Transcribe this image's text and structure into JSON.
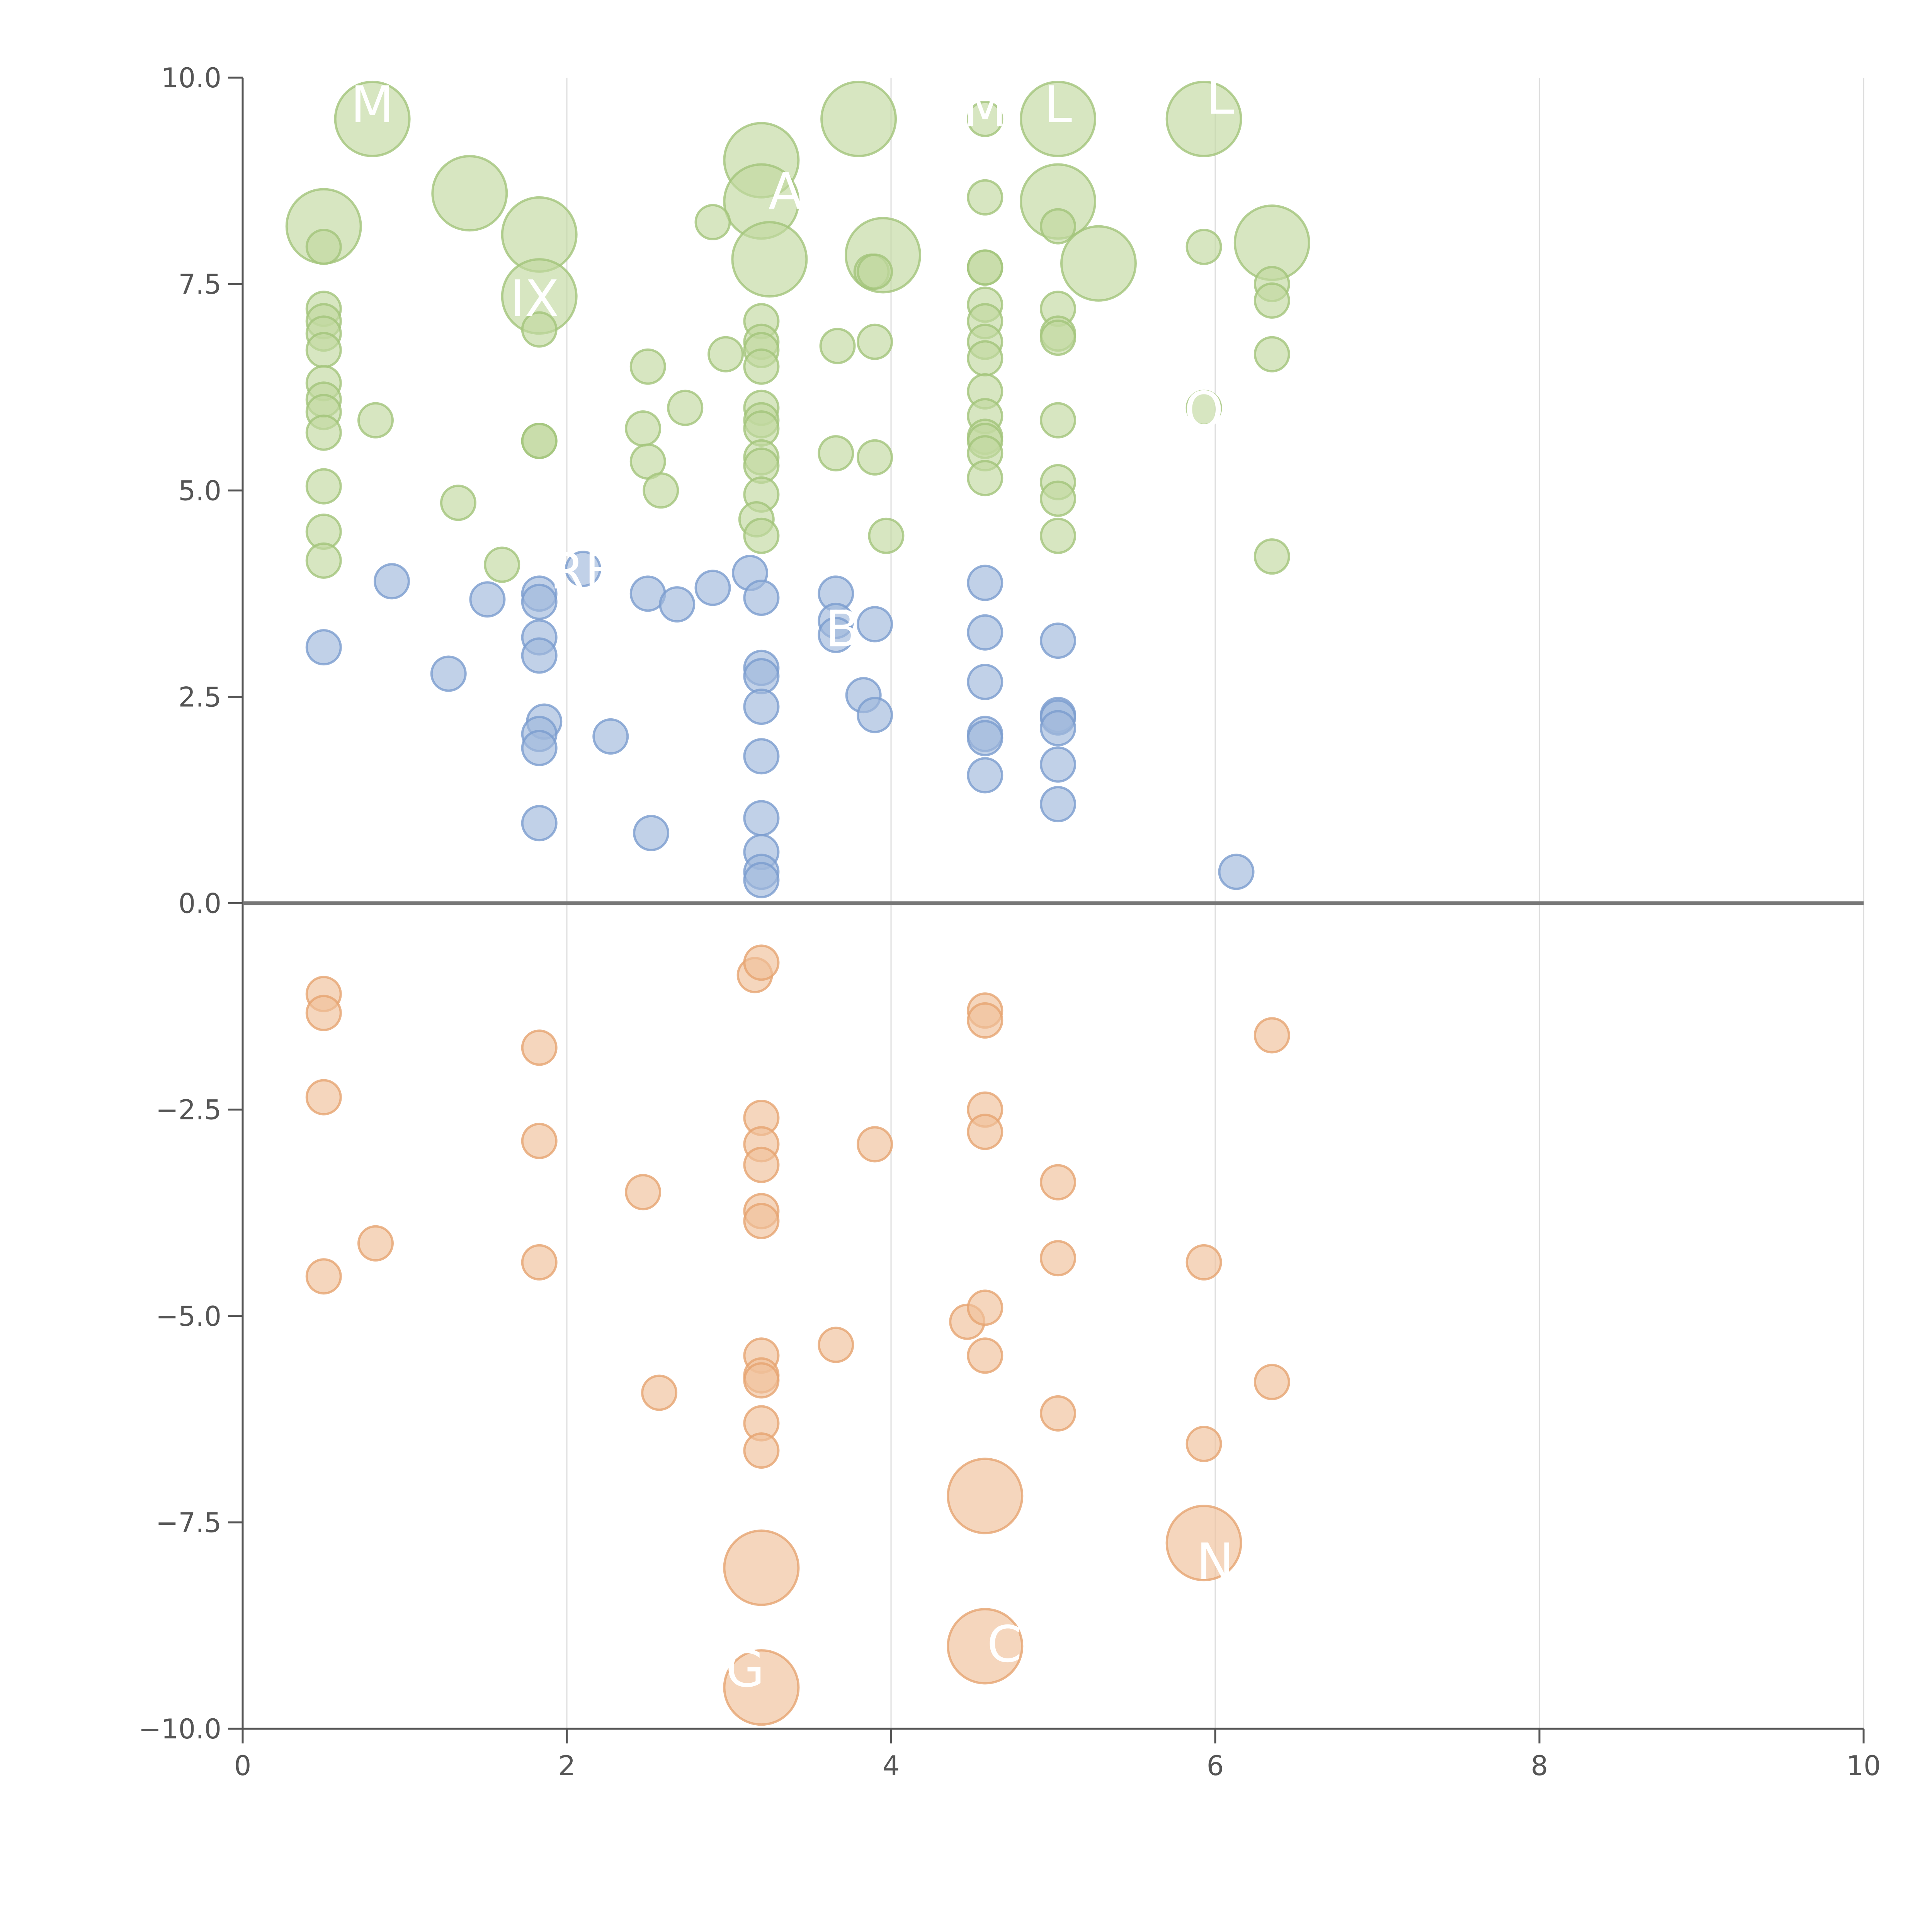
{
  "chart_data": {
    "type": "scatter",
    "title": "",
    "xlabel": "",
    "ylabel": "",
    "xlim": [
      0,
      10
    ],
    "ylim": [
      -10,
      10
    ],
    "xticks": [
      "0",
      "2",
      "4",
      "6",
      "8",
      "10"
    ],
    "yticks": [
      "−10.0",
      "−7.5",
      "−5.0",
      "−2.5",
      "0.0",
      "2.5",
      "5.0",
      "7.5",
      "10.0"
    ],
    "grid": "vertical",
    "zero_line": true,
    "colors": {
      "green_fill": "#c2d9a0",
      "green_stroke": "#a3c47a",
      "blue_fill": "#9fb8dc",
      "blue_stroke": "#7a9cce",
      "orange_fill": "#f0c09a",
      "orange_stroke": "#e6a470",
      "label_color": "#ffffff"
    },
    "groups": [
      {
        "color_key": "green",
        "points": [
          [
            0.5,
            8.2,
            3
          ],
          [
            0.8,
            9.5,
            3
          ],
          [
            1.4,
            8.6,
            3
          ],
          [
            1.83,
            8.1,
            3
          ],
          [
            1.83,
            7.35,
            3
          ],
          [
            3.2,
            9.0,
            3
          ],
          [
            3.2,
            8.5,
            3
          ],
          [
            3.25,
            7.8,
            3
          ],
          [
            3.8,
            9.5,
            3
          ],
          [
            3.95,
            7.85,
            3
          ],
          [
            5.03,
            9.5,
            3
          ],
          [
            5.03,
            8.5,
            3
          ],
          [
            5.28,
            7.75,
            3
          ],
          [
            5.93,
            9.5,
            3
          ],
          [
            6.35,
            8.0,
            3
          ],
          [
            0.5,
            7.95,
            1
          ],
          [
            0.5,
            7.2,
            1
          ],
          [
            0.5,
            7.05,
            1
          ],
          [
            0.5,
            6.9,
            1
          ],
          [
            0.5,
            6.7,
            1
          ],
          [
            0.5,
            6.3,
            1
          ],
          [
            0.5,
            6.1,
            1
          ],
          [
            0.5,
            5.95,
            1
          ],
          [
            0.5,
            5.7,
            1
          ],
          [
            0.5,
            5.05,
            1
          ],
          [
            0.5,
            4.5,
            1
          ],
          [
            0.5,
            4.15,
            1
          ],
          [
            0.82,
            5.85,
            1
          ],
          [
            1.33,
            4.85,
            1
          ],
          [
            1.6,
            4.1,
            1
          ],
          [
            1.83,
            6.95,
            1
          ],
          [
            1.83,
            5.6,
            1
          ],
          [
            1.83,
            5.6,
            1
          ],
          [
            2.5,
            6.5,
            1
          ],
          [
            2.47,
            5.75,
            1
          ],
          [
            2.5,
            5.35,
            1
          ],
          [
            2.58,
            5.0,
            1
          ],
          [
            2.73,
            6.0,
            1
          ],
          [
            2.9,
            8.25,
            1
          ],
          [
            2.98,
            6.65,
            1
          ],
          [
            3.2,
            7.05,
            1
          ],
          [
            3.2,
            6.8,
            1
          ],
          [
            3.2,
            6.7,
            1
          ],
          [
            3.2,
            6.5,
            1
          ],
          [
            3.2,
            6.0,
            1
          ],
          [
            3.2,
            5.85,
            1
          ],
          [
            3.2,
            5.75,
            1
          ],
          [
            3.2,
            5.4,
            1
          ],
          [
            3.2,
            5.3,
            1
          ],
          [
            3.2,
            4.95,
            1
          ],
          [
            3.17,
            4.65,
            1
          ],
          [
            3.2,
            4.45,
            1
          ],
          [
            3.67,
            6.75,
            1
          ],
          [
            3.66,
            5.45,
            1
          ],
          [
            3.88,
            7.65,
            1
          ],
          [
            3.9,
            7.65,
            1
          ],
          [
            3.9,
            6.8,
            1
          ],
          [
            3.9,
            5.4,
            1
          ],
          [
            3.97,
            4.45,
            1
          ],
          [
            4.58,
            9.5,
            1
          ],
          [
            4.58,
            8.55,
            1
          ],
          [
            4.58,
            7.7,
            1
          ],
          [
            4.58,
            7.7,
            1
          ],
          [
            4.58,
            7.25,
            1
          ],
          [
            4.58,
            7.05,
            1
          ],
          [
            4.58,
            6.8,
            1
          ],
          [
            4.58,
            6.6,
            1
          ],
          [
            4.58,
            6.2,
            1
          ],
          [
            4.58,
            5.9,
            1
          ],
          [
            4.58,
            5.65,
            1
          ],
          [
            4.58,
            5.6,
            1
          ],
          [
            4.58,
            5.45,
            1
          ],
          [
            4.58,
            5.15,
            1
          ],
          [
            5.03,
            8.2,
            1
          ],
          [
            5.03,
            7.2,
            1
          ],
          [
            5.03,
            6.9,
            1
          ],
          [
            5.03,
            6.85,
            1
          ],
          [
            5.03,
            5.85,
            1
          ],
          [
            5.03,
            5.1,
            1
          ],
          [
            5.03,
            4.9,
            1
          ],
          [
            5.03,
            4.45,
            1
          ],
          [
            5.93,
            7.95,
            1
          ],
          [
            5.93,
            6.0,
            1
          ],
          [
            6.35,
            7.5,
            1
          ],
          [
            6.35,
            7.3,
            1
          ],
          [
            6.35,
            6.65,
            1
          ],
          [
            6.35,
            4.2,
            1
          ]
        ]
      },
      {
        "color_key": "blue",
        "points": [
          [
            0.5,
            3.1,
            1
          ],
          [
            0.92,
            3.9,
            1
          ],
          [
            1.27,
            2.78,
            1
          ],
          [
            1.51,
            3.68,
            1
          ],
          [
            1.83,
            3.75,
            1
          ],
          [
            1.83,
            3.65,
            1
          ],
          [
            1.83,
            3.22,
            1
          ],
          [
            1.83,
            3.0,
            1
          ],
          [
            1.86,
            2.2,
            1
          ],
          [
            1.83,
            2.05,
            1
          ],
          [
            1.83,
            1.88,
            1
          ],
          [
            1.83,
            0.97,
            1
          ],
          [
            2.1,
            4.05,
            1
          ],
          [
            2.27,
            2.02,
            1
          ],
          [
            2.5,
            3.75,
            1
          ],
          [
            2.52,
            0.85,
            1
          ],
          [
            2.68,
            3.62,
            1
          ],
          [
            2.9,
            3.82,
            1
          ],
          [
            3.13,
            4.0,
            1
          ],
          [
            3.2,
            3.7,
            1
          ],
          [
            3.2,
            2.85,
            1
          ],
          [
            3.2,
            2.75,
            1
          ],
          [
            3.2,
            2.38,
            1
          ],
          [
            3.2,
            1.78,
            1
          ],
          [
            3.2,
            1.03,
            1
          ],
          [
            3.2,
            0.62,
            1
          ],
          [
            3.2,
            0.38,
            1
          ],
          [
            3.2,
            0.28,
            1
          ],
          [
            3.66,
            3.75,
            1
          ],
          [
            3.66,
            3.42,
            1
          ],
          [
            3.66,
            3.25,
            1
          ],
          [
            3.83,
            2.52,
            1
          ],
          [
            3.9,
            3.38,
            1
          ],
          [
            3.9,
            2.28,
            1
          ],
          [
            4.58,
            3.88,
            1
          ],
          [
            4.58,
            3.28,
            1
          ],
          [
            4.58,
            2.68,
            1
          ],
          [
            4.58,
            2.05,
            1
          ],
          [
            4.58,
            2.0,
            1
          ],
          [
            4.58,
            1.55,
            1
          ],
          [
            5.03,
            3.18,
            1
          ],
          [
            5.03,
            2.28,
            1
          ],
          [
            5.03,
            2.25,
            1
          ],
          [
            5.03,
            2.12,
            1
          ],
          [
            5.03,
            1.68,
            1
          ],
          [
            5.03,
            1.2,
            1
          ],
          [
            6.13,
            0.38,
            1
          ]
        ]
      },
      {
        "color_key": "orange",
        "points": [
          [
            0.5,
            -1.1,
            1
          ],
          [
            0.5,
            -1.33,
            1
          ],
          [
            0.5,
            -2.35,
            1
          ],
          [
            0.5,
            -4.52,
            1
          ],
          [
            0.82,
            -4.12,
            1
          ],
          [
            1.83,
            -1.75,
            1
          ],
          [
            1.83,
            -2.88,
            1
          ],
          [
            1.83,
            -4.35,
            1
          ],
          [
            2.47,
            -3.5,
            1
          ],
          [
            2.57,
            -5.93,
            1
          ],
          [
            3.16,
            -0.87,
            1
          ],
          [
            3.2,
            -0.72,
            1
          ],
          [
            3.2,
            -2.6,
            1
          ],
          [
            3.2,
            -2.92,
            1
          ],
          [
            3.2,
            -3.17,
            1
          ],
          [
            3.2,
            -3.73,
            1
          ],
          [
            3.2,
            -3.85,
            1
          ],
          [
            3.2,
            -5.48,
            1
          ],
          [
            3.2,
            -5.72,
            1
          ],
          [
            3.2,
            -5.78,
            1
          ],
          [
            3.2,
            -6.3,
            1
          ],
          [
            3.2,
            -6.63,
            1
          ],
          [
            3.66,
            -5.35,
            1
          ],
          [
            3.9,
            -2.92,
            1
          ],
          [
            4.47,
            -5.07,
            1
          ],
          [
            4.58,
            -1.3,
            1
          ],
          [
            4.58,
            -1.42,
            1
          ],
          [
            4.58,
            -2.5,
            1
          ],
          [
            4.58,
            -2.77,
            1
          ],
          [
            4.58,
            -4.9,
            1
          ],
          [
            4.58,
            -5.48,
            1
          ],
          [
            5.03,
            -3.38,
            1
          ],
          [
            5.03,
            -4.3,
            1
          ],
          [
            5.03,
            -6.18,
            1
          ],
          [
            5.93,
            -4.35,
            1
          ],
          [
            5.93,
            -6.55,
            1
          ],
          [
            6.35,
            -1.6,
            1
          ],
          [
            6.35,
            -5.8,
            1
          ],
          [
            3.2,
            -8.05,
            3
          ],
          [
            3.2,
            -9.5,
            3
          ],
          [
            4.58,
            -7.18,
            3
          ],
          [
            4.58,
            -9.0,
            3
          ],
          [
            5.93,
            -7.75,
            3
          ]
        ]
      }
    ],
    "labels": [
      {
        "text": "M",
        "x": 0.8,
        "y": 9.65
      },
      {
        "text": "A",
        "x": 3.35,
        "y": 8.6
      },
      {
        "text": "M",
        "x": 4.58,
        "y": 9.6
      },
      {
        "text": "L",
        "x": 5.03,
        "y": 9.65
      },
      {
        "text": "L",
        "x": 6.03,
        "y": 9.75
      },
      {
        "text": "IX",
        "x": 1.8,
        "y": 7.3
      },
      {
        "text": "O",
        "x": 5.93,
        "y": 5.95
      },
      {
        "text": "RE",
        "x": 2.1,
        "y": 4.0
      },
      {
        "text": "B",
        "x": 3.7,
        "y": 3.3
      },
      {
        "text": "N",
        "x": 6.0,
        "y": -8.0
      },
      {
        "text": "C",
        "x": 4.7,
        "y": -9.0
      },
      {
        "text": "G",
        "x": 3.1,
        "y": -9.3
      }
    ]
  }
}
